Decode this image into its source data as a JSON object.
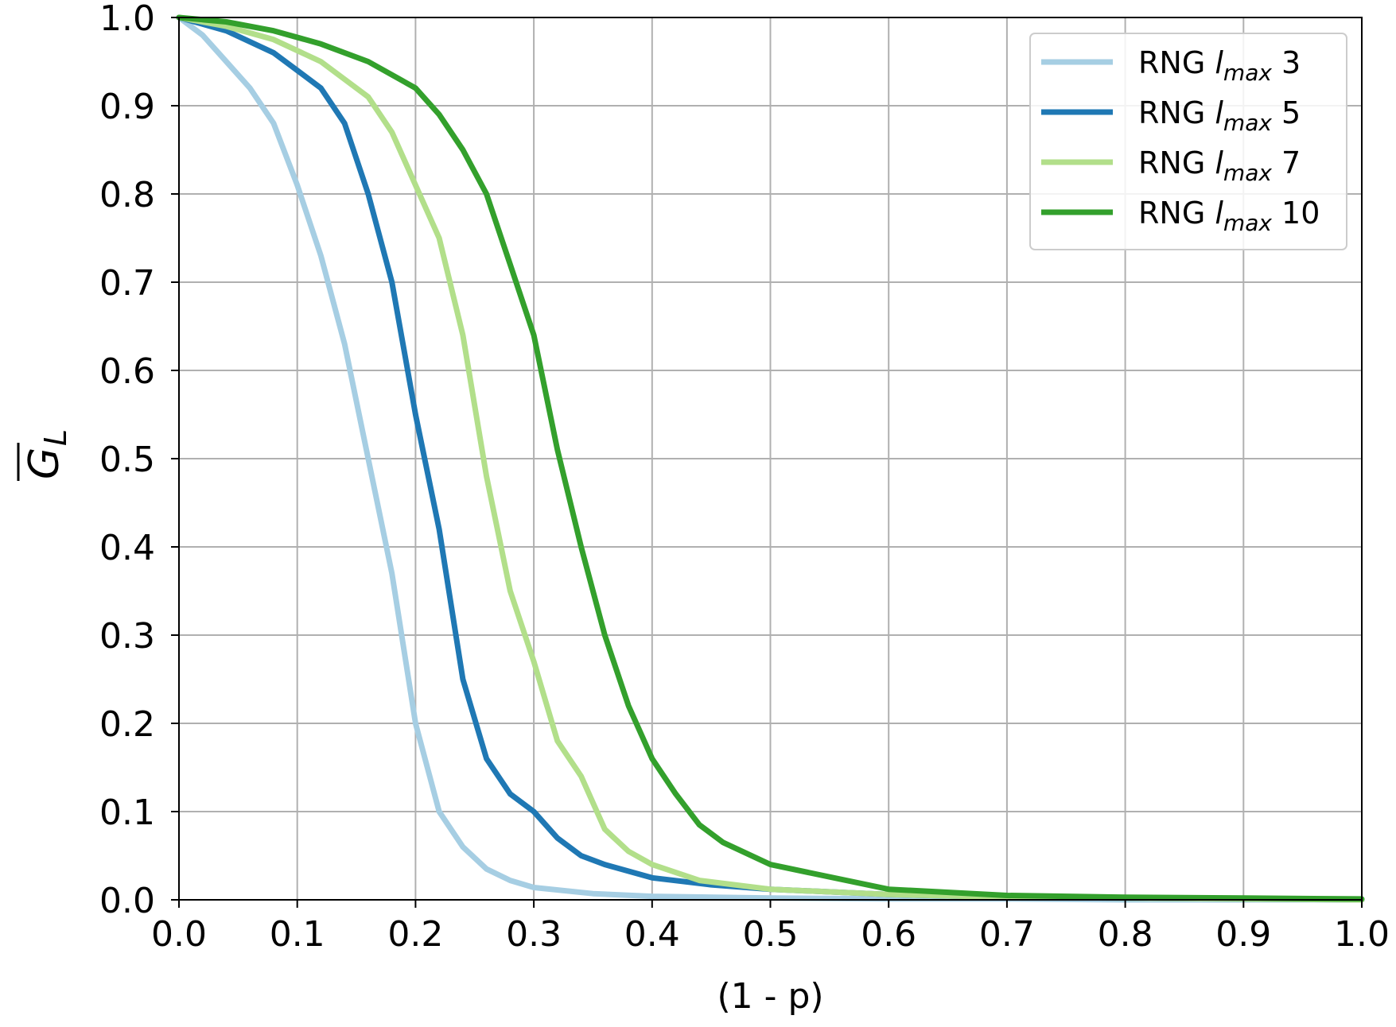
{
  "chart_data": {
    "type": "line",
    "title": "",
    "xlabel": "(1 - p)",
    "ylabel": "G",
    "ylabel_subscript": "L",
    "xlim": [
      0.0,
      1.0
    ],
    "ylim": [
      0.0,
      1.0
    ],
    "grid": true,
    "legend_position": "top-right",
    "x_ticks": [
      "0.0",
      "0.1",
      "0.2",
      "0.3",
      "0.4",
      "0.5",
      "0.6",
      "0.7",
      "0.8",
      "0.9",
      "1.0"
    ],
    "y_ticks": [
      "0.0",
      "0.1",
      "0.2",
      "0.3",
      "0.4",
      "0.5",
      "0.6",
      "0.7",
      "0.8",
      "0.9",
      "1.0"
    ],
    "series": [
      {
        "name": "RNG l_max 3",
        "legend_prefix": "RNG ",
        "legend_var": "l",
        "legend_sub": "max",
        "legend_suffix": " 3",
        "color": "#a6cee3",
        "x": [
          0.0,
          0.02,
          0.04,
          0.06,
          0.08,
          0.1,
          0.12,
          0.14,
          0.16,
          0.18,
          0.2,
          0.22,
          0.24,
          0.26,
          0.28,
          0.3,
          0.35,
          0.4,
          0.5,
          0.6,
          0.7,
          0.8,
          0.9,
          1.0
        ],
        "y": [
          1.0,
          0.98,
          0.95,
          0.92,
          0.88,
          0.81,
          0.73,
          0.63,
          0.5,
          0.37,
          0.2,
          0.1,
          0.06,
          0.035,
          0.022,
          0.014,
          0.007,
          0.004,
          0.002,
          0.001,
          0.001,
          0.0,
          0.0,
          0.0
        ]
      },
      {
        "name": "RNG l_max 5",
        "legend_prefix": "RNG ",
        "legend_var": "l",
        "legend_sub": "max",
        "legend_suffix": " 5",
        "color": "#1f78b4",
        "x": [
          0.0,
          0.04,
          0.08,
          0.12,
          0.14,
          0.16,
          0.18,
          0.2,
          0.22,
          0.24,
          0.26,
          0.28,
          0.3,
          0.32,
          0.34,
          0.36,
          0.4,
          0.45,
          0.5,
          0.6,
          0.7,
          0.8,
          0.9,
          1.0
        ],
        "y": [
          1.0,
          0.985,
          0.96,
          0.92,
          0.88,
          0.8,
          0.7,
          0.55,
          0.42,
          0.25,
          0.16,
          0.12,
          0.1,
          0.07,
          0.05,
          0.04,
          0.025,
          0.017,
          0.012,
          0.006,
          0.003,
          0.002,
          0.001,
          0.0
        ]
      },
      {
        "name": "RNG l_max 7",
        "legend_prefix": "RNG ",
        "legend_var": "l",
        "legend_sub": "max",
        "legend_suffix": " 7",
        "color": "#b2df8a",
        "x": [
          0.0,
          0.04,
          0.08,
          0.12,
          0.16,
          0.18,
          0.2,
          0.22,
          0.24,
          0.26,
          0.28,
          0.3,
          0.32,
          0.34,
          0.36,
          0.38,
          0.4,
          0.44,
          0.5,
          0.6,
          0.7,
          0.8,
          0.9,
          1.0
        ],
        "y": [
          1.0,
          0.99,
          0.975,
          0.95,
          0.91,
          0.87,
          0.81,
          0.75,
          0.64,
          0.48,
          0.35,
          0.27,
          0.18,
          0.14,
          0.08,
          0.055,
          0.04,
          0.022,
          0.012,
          0.006,
          0.003,
          0.002,
          0.001,
          0.0
        ]
      },
      {
        "name": "RNG l_max 10",
        "legend_prefix": "RNG ",
        "legend_var": "l",
        "legend_sub": "max",
        "legend_suffix": " 10",
        "color": "#33a02c",
        "x": [
          0.0,
          0.04,
          0.08,
          0.12,
          0.16,
          0.2,
          0.22,
          0.24,
          0.26,
          0.28,
          0.3,
          0.32,
          0.34,
          0.36,
          0.38,
          0.4,
          0.42,
          0.44,
          0.46,
          0.5,
          0.6,
          0.7,
          0.8,
          0.9,
          1.0
        ],
        "y": [
          1.0,
          0.995,
          0.985,
          0.97,
          0.95,
          0.92,
          0.89,
          0.85,
          0.8,
          0.72,
          0.64,
          0.51,
          0.4,
          0.3,
          0.22,
          0.16,
          0.12,
          0.085,
          0.065,
          0.04,
          0.012,
          0.005,
          0.003,
          0.002,
          0.001
        ]
      }
    ]
  }
}
